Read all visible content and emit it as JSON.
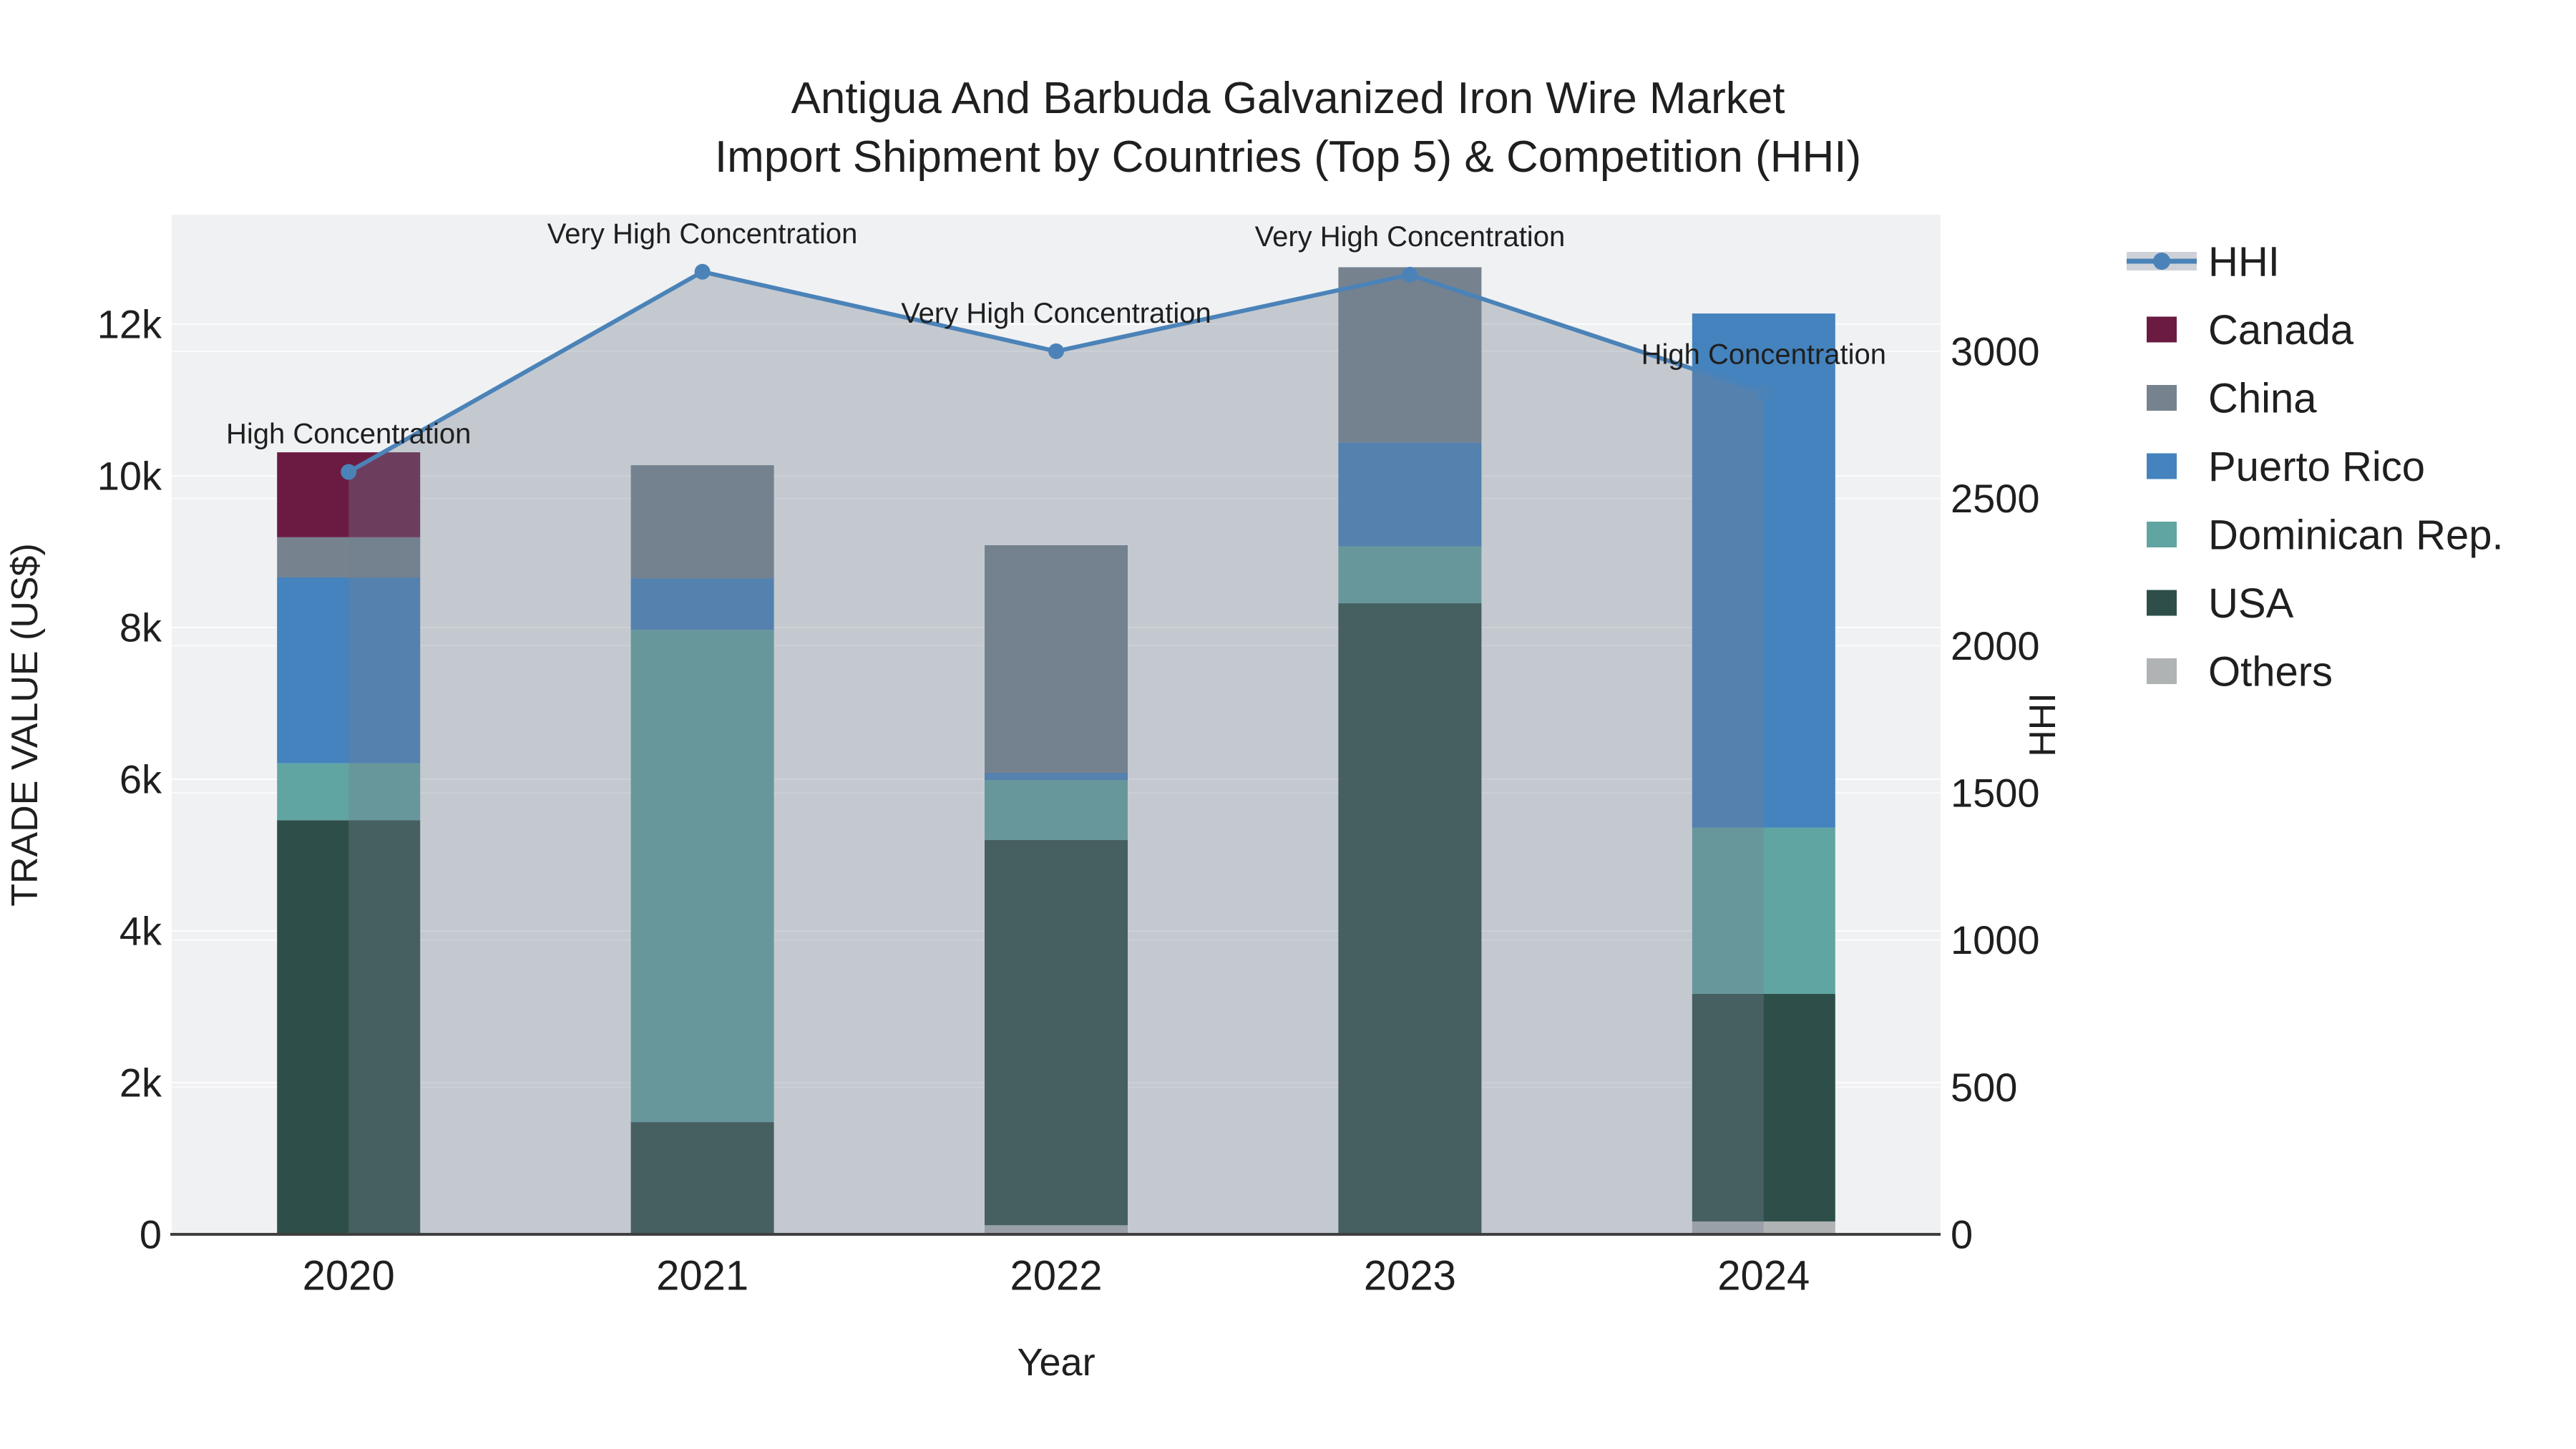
{
  "title": {
    "line1": "Antigua And Barbuda Galvanized Iron Wire Market",
    "line2": "Import Shipment by Countries (Top 5) & Competition (HHI)"
  },
  "legend": {
    "items": [
      {
        "label": "HHI",
        "type": "line",
        "color": "#4b83b8"
      },
      {
        "label": "Canada",
        "type": "swatch",
        "color": "#6b1b42"
      },
      {
        "label": "China",
        "type": "swatch",
        "color": "#76838f"
      },
      {
        "label": "Puerto Rico",
        "type": "swatch",
        "color": "#4483bd"
      },
      {
        "label": "Dominican Rep.",
        "type": "swatch",
        "color": "#61a5a2"
      },
      {
        "label": "USA",
        "type": "swatch",
        "color": "#2e4f49"
      },
      {
        "label": "Others",
        "type": "swatch",
        "color": "#b0b3b4"
      }
    ]
  },
  "chart_data": {
    "type": "bar",
    "subtype": "stacked bars with dual-axis line overlay",
    "categories": [
      "2020",
      "2021",
      "2022",
      "2023",
      "2024"
    ],
    "stack_order_bottom_to_top": [
      "Others",
      "USA",
      "Dominican Rep.",
      "Puerto Rico",
      "China",
      "Canada"
    ],
    "series": [
      {
        "name": "Canada",
        "color": "#6b1b42",
        "values": [
          1120,
          0,
          0,
          0,
          0
        ]
      },
      {
        "name": "China",
        "color": "#76838f",
        "values": [
          530,
          1490,
          3000,
          2310,
          0
        ]
      },
      {
        "name": "Puerto Rico",
        "color": "#4483bd",
        "values": [
          2450,
          680,
          95,
          1370,
          6780
        ]
      },
      {
        "name": "Dominican Rep.",
        "color": "#61a5a2",
        "values": [
          750,
          6490,
          790,
          750,
          2190
        ]
      },
      {
        "name": "USA",
        "color": "#2e4f49",
        "values": [
          5460,
          1480,
          5080,
          8320,
          3000
        ]
      },
      {
        "name": "Others",
        "color": "#b0b3b4",
        "values": [
          0,
          0,
          120,
          0,
          170
        ]
      }
    ],
    "bar_totals": [
      10310,
      10140,
      9085,
      12750,
      12140
    ],
    "line": {
      "name": "HHI",
      "color": "#4b83b8",
      "fill_color": "rgba(116,126,142,0.35)",
      "values": [
        2590,
        3270,
        3000,
        3260,
        2860
      ]
    },
    "annotations": [
      "High Concentration",
      "Very High Concentration",
      "Very High Concentration",
      "Very High Concentration",
      "High Concentration"
    ],
    "left_axis": {
      "title": "TRADE VALUE (US$)",
      "tick_labels": [
        "0",
        "2k",
        "4k",
        "6k",
        "8k",
        "10k",
        "12k"
      ],
      "tick_values": [
        0,
        2000,
        4000,
        6000,
        8000,
        10000,
        12000
      ],
      "range": [
        0,
        13443
      ]
    },
    "right_axis": {
      "title": "HHI",
      "tick_labels": [
        "0",
        "500",
        "1000",
        "1500",
        "2000",
        "2500",
        "3000"
      ],
      "tick_values": [
        0,
        500,
        1000,
        1500,
        2000,
        2500,
        3000
      ],
      "range": [
        0,
        3464
      ]
    },
    "x_axis": {
      "title": "Year"
    },
    "grid": true,
    "legend_position": "right"
  },
  "colors": {
    "plot_background": "#f0f1f3",
    "grid_line": "#ffffff",
    "axis_line": "#3f3f3f",
    "text": "#1f1f1f"
  }
}
